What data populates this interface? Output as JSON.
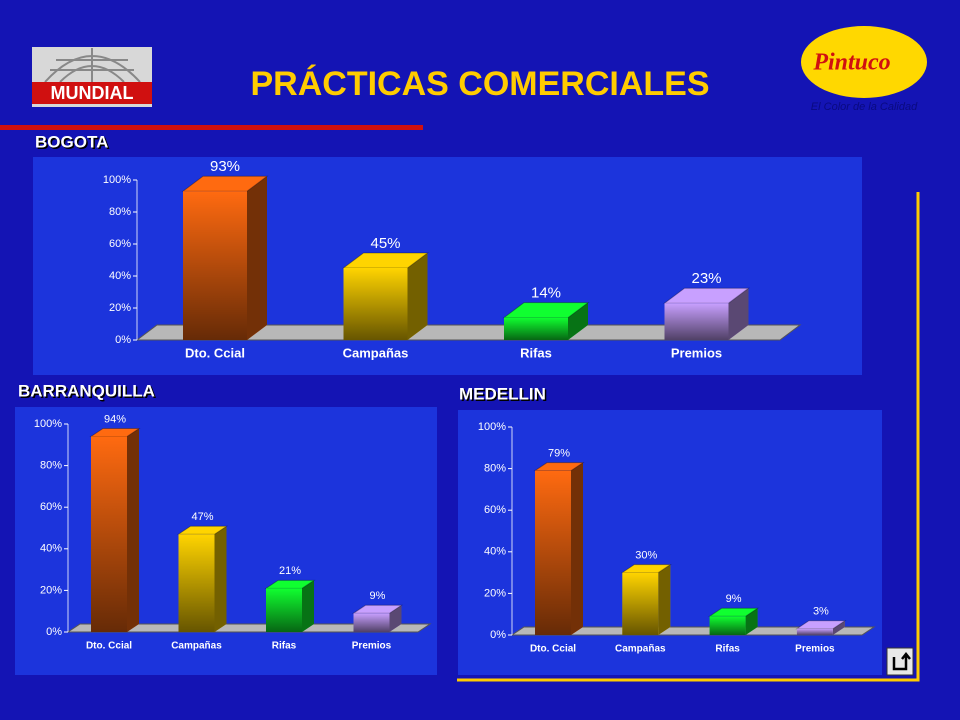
{
  "header": {
    "title": "PRÁCTICAS COMERCIALES",
    "logo_left": "MUNDIAL",
    "logo_right": "Pintuco",
    "tagline": "El Color de la Calidad"
  },
  "chart_data": [
    {
      "type": "bar",
      "title": "BOGOTA",
      "categories": [
        "Dto. Ccial",
        "Campañas",
        "Rifas",
        "Premios"
      ],
      "values": [
        93,
        45,
        14,
        23
      ],
      "value_labels": [
        "93%",
        "45%",
        "14%",
        "23%"
      ],
      "colors": [
        "#ff6a10",
        "#ffd400",
        "#10ff30",
        "#c8a0ff"
      ],
      "ylim": [
        0,
        100
      ],
      "yticks": [
        {
          "value": 0,
          "label": "0%"
        },
        {
          "value": 20,
          "label": "20%"
        },
        {
          "value": 40,
          "label": "40%"
        },
        {
          "value": 60,
          "label": "60%"
        },
        {
          "value": 80,
          "label": "80%"
        },
        {
          "value": 100,
          "label": "100%"
        }
      ]
    },
    {
      "type": "bar",
      "title": "BARRANQUILLA",
      "categories": [
        "Dto. Ccial",
        "Campañas",
        "Rifas",
        "Premios"
      ],
      "values": [
        94,
        47,
        21,
        9
      ],
      "value_labels": [
        "94%",
        "47%",
        "21%",
        "9%"
      ],
      "colors": [
        "#ff6a10",
        "#ffd400",
        "#10ff30",
        "#c8a0ff"
      ],
      "ylim": [
        0,
        100
      ],
      "yticks": [
        {
          "value": 0,
          "label": "0%"
        },
        {
          "value": 20,
          "label": "20%"
        },
        {
          "value": 40,
          "label": "40%"
        },
        {
          "value": 60,
          "label": "60%"
        },
        {
          "value": 80,
          "label": "80%"
        },
        {
          "value": 100,
          "label": "100%"
        }
      ]
    },
    {
      "type": "bar",
      "title": "MEDELLIN",
      "categories": [
        "Dto. Ccial",
        "Campañas",
        "Rifas",
        "Premios"
      ],
      "values": [
        79,
        30,
        9,
        3
      ],
      "value_labels": [
        "79%",
        "30%",
        "9%",
        "3%"
      ],
      "colors": [
        "#ff6a10",
        "#ffd400",
        "#10ff30",
        "#c8a0ff"
      ],
      "ylim": [
        0,
        100
      ],
      "yticks": [
        {
          "value": 0,
          "label": "0%"
        },
        {
          "value": 20,
          "label": "20%"
        },
        {
          "value": 40,
          "label": "40%"
        },
        {
          "value": 60,
          "label": "60%"
        },
        {
          "value": 80,
          "label": "80%"
        },
        {
          "value": 100,
          "label": "100%"
        }
      ]
    }
  ]
}
